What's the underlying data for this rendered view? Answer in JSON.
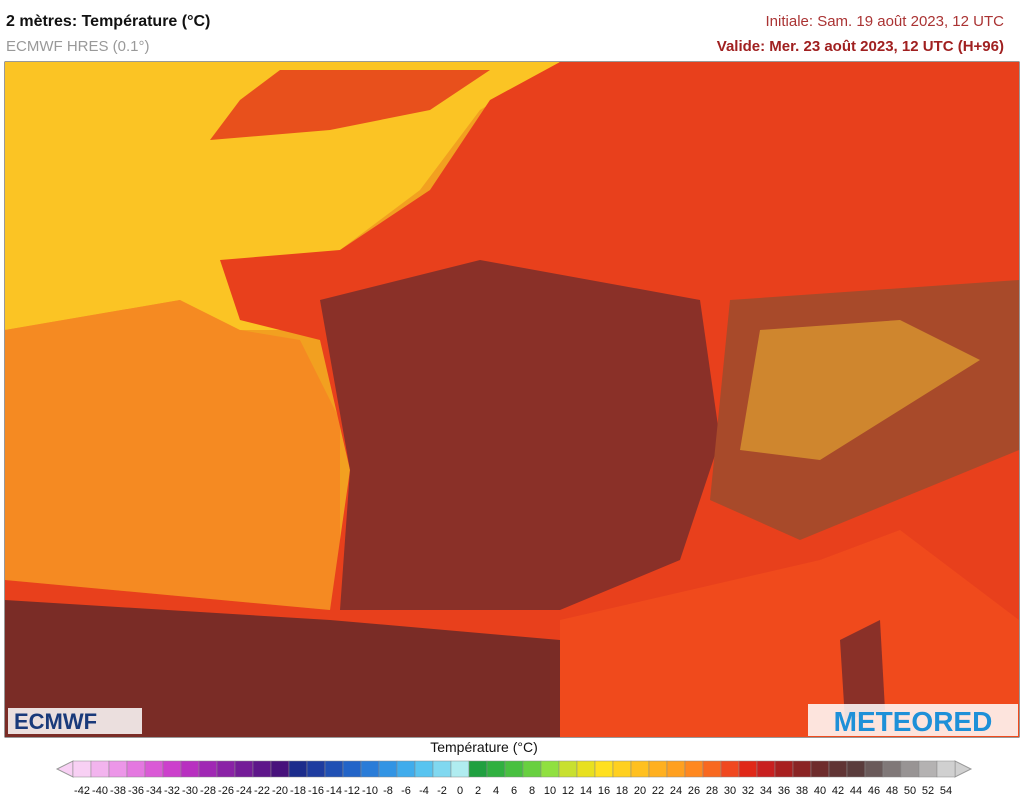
{
  "header": {
    "title": "2 mètres: Température (°C)",
    "subtitle": "ECMWF HRES (0.1°)",
    "initial": "Initiale: Sam. 19 août 2023, 12 UTC",
    "valid": "Valide: Mer. 23 août 2023, 12 UTC (H+96)"
  },
  "logos": {
    "left": "ECMWF",
    "right": "METEORED"
  },
  "colorbar": {
    "title": "Température (°C)",
    "ticks": [
      -42,
      -40,
      -38,
      -36,
      -34,
      -32,
      -30,
      -28,
      -26,
      -24,
      -22,
      -20,
      -18,
      -16,
      -14,
      -12,
      -10,
      -8,
      -6,
      -4,
      -2,
      0,
      2,
      4,
      6,
      8,
      10,
      12,
      14,
      16,
      18,
      20,
      22,
      24,
      26,
      28,
      30,
      32,
      34,
      36,
      38,
      40,
      42,
      44,
      46,
      48,
      50,
      52,
      54
    ],
    "colors": [
      "#f8d0f4",
      "#f2b4ee",
      "#ec96e8",
      "#e478e0",
      "#da5ad6",
      "#cc40cc",
      "#b830c0",
      "#a028b4",
      "#8a22a6",
      "#741c98",
      "#5e168a",
      "#48127c",
      "#1c2c8c",
      "#1e3ca0",
      "#2050b4",
      "#2264c8",
      "#2a7cd8",
      "#3294e4",
      "#40acec",
      "#58c4f0",
      "#80d8f0",
      "#b0ecf0",
      "#20a040",
      "#30b040",
      "#48c040",
      "#68d040",
      "#90e040",
      "#c8e030",
      "#e8e020",
      "#ffe020",
      "#ffd020",
      "#ffc020",
      "#ffb020",
      "#ffa020",
      "#ff8820",
      "#f86820",
      "#f04820",
      "#e02818",
      "#c82020",
      "#a82020",
      "#8a2424",
      "#6e2c2c",
      "#603434",
      "#5a3c3c",
      "#6a5a5a",
      "#807878",
      "#989494",
      "#b4b2b2",
      "#d0d0d0"
    ]
  }
}
